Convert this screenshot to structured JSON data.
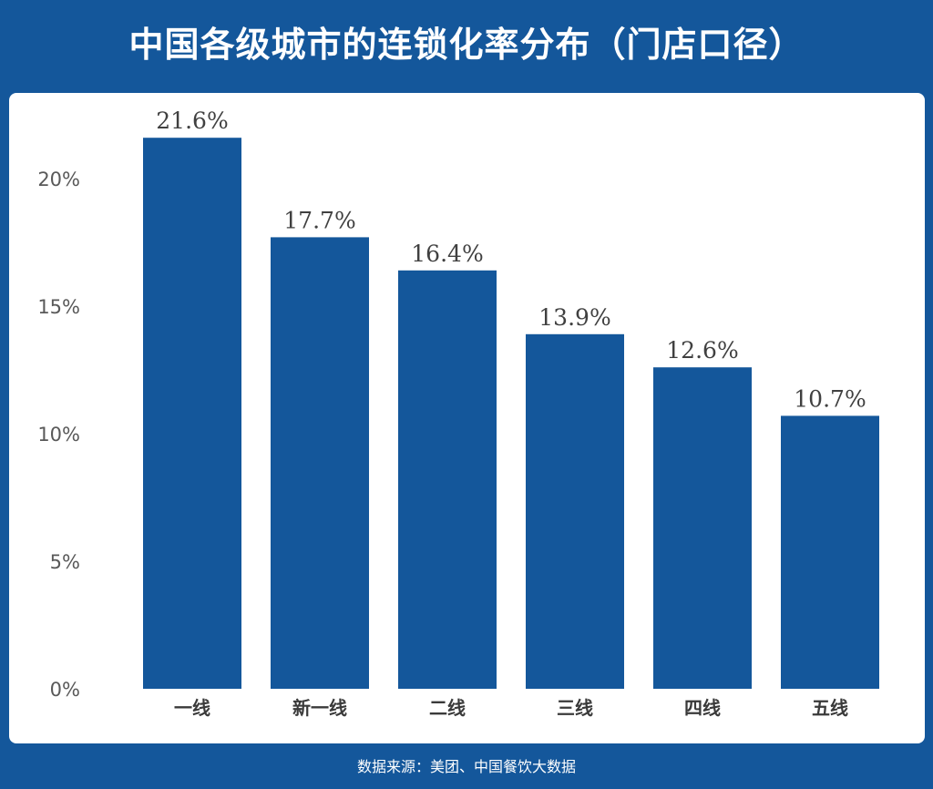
{
  "title": "中国各级城市的连锁化率分布（门店口径）",
  "source": "数据来源：美团、中国餐饮大数据",
  "colors": {
    "background": "#14579b",
    "bar": "#14579b",
    "panel": "#ffffff"
  },
  "chart_data": {
    "type": "bar",
    "categories": [
      "一线",
      "新一线",
      "二线",
      "三线",
      "四线",
      "五线"
    ],
    "values": [
      21.6,
      17.7,
      16.4,
      13.9,
      12.6,
      10.7
    ],
    "data_labels": [
      "21.6%",
      "17.7%",
      "16.4%",
      "13.9%",
      "12.6%",
      "10.7%"
    ],
    "yticks": [
      0,
      5,
      10,
      15,
      20
    ],
    "ytick_labels": [
      "0%",
      "5%",
      "10%",
      "15%",
      "20%"
    ],
    "ylim": [
      0,
      20
    ],
    "unit": "%",
    "grid": false,
    "legend": "none"
  }
}
